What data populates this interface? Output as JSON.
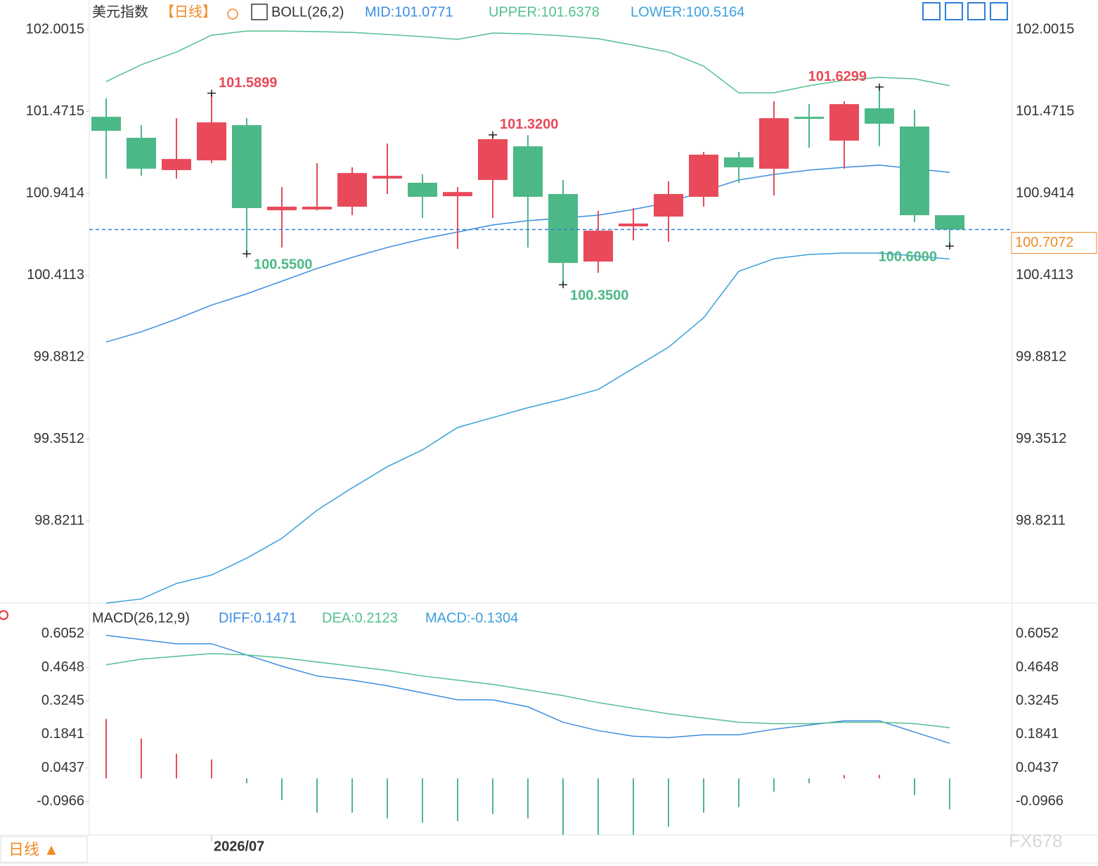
{
  "chart_data": [
    {
      "type": "candlestick",
      "title": "美元指数",
      "period": "【日线】",
      "indicator": "BOLL(26,2)",
      "open": [
        101.437,
        101.301,
        101.092,
        101.155,
        101.383,
        100.832,
        100.837,
        100.855,
        101.037,
        101.01,
        100.923,
        101.028,
        101.246,
        100.937,
        100.5,
        100.728,
        100.791,
        100.919,
        101.174,
        101.101,
        101.437,
        101.283,
        101.492,
        101.374,
        100.8
      ],
      "high": [
        101.556,
        101.383,
        101.428,
        101.5899,
        101.428,
        100.982,
        101.137,
        101.11,
        101.264,
        101.064,
        100.982,
        101.32,
        101.319,
        101.028,
        100.828,
        100.846,
        101.019,
        101.21,
        101.21,
        101.537,
        101.519,
        101.537,
        101.6299,
        101.483,
        100.8
      ],
      "low": [
        101.037,
        101.055,
        101.037,
        101.137,
        100.55,
        100.591,
        100.832,
        100.8,
        100.937,
        100.782,
        100.582,
        100.782,
        100.591,
        100.35,
        100.427,
        100.637,
        100.628,
        100.855,
        101.01,
        100.928,
        101.237,
        101.101,
        101.246,
        100.755,
        100.6
      ],
      "close": [
        101.346,
        101.101,
        101.164,
        101.401,
        100.846,
        100.855,
        100.855,
        101.073,
        101.055,
        100.919,
        100.95,
        101.292,
        100.919,
        100.491,
        100.7,
        100.746,
        100.937,
        101.192,
        101.11,
        101.428,
        101.428,
        101.519,
        101.392,
        100.8,
        100.7072
      ],
      "up_color": "#e84a5a",
      "down_color": "#4db887",
      "series": [
        {
          "name": "MID:101.0771",
          "color": "#3c8de0",
          "values": [
            99.979,
            100.045,
            100.127,
            100.218,
            100.291,
            100.373,
            100.455,
            100.527,
            100.591,
            100.646,
            100.691,
            100.737,
            100.764,
            100.782,
            100.8,
            100.837,
            100.882,
            100.955,
            101.028,
            101.064,
            101.092,
            101.11,
            101.124,
            101.101,
            101.0771
          ]
        },
        {
          "name": "UPPER:101.6378",
          "color": "#52c08f",
          "values": [
            101.665,
            101.774,
            101.856,
            101.965,
            101.992,
            101.992,
            101.988,
            101.983,
            101.97,
            101.956,
            101.938,
            101.979,
            101.974,
            101.961,
            101.942,
            101.901,
            101.856,
            101.765,
            101.592,
            101.592,
            101.638,
            101.674,
            101.692,
            101.683,
            101.6378
          ]
        },
        {
          "name": "LOWER:100.5164",
          "color": "#3aa0dc",
          "values": [
            98.289,
            98.316,
            98.416,
            98.471,
            98.58,
            98.708,
            98.89,
            99.035,
            99.172,
            99.281,
            99.426,
            99.49,
            99.554,
            99.609,
            99.672,
            99.809,
            99.945,
            100.136,
            100.437,
            100.518,
            100.546,
            100.555,
            100.555,
            100.537,
            100.5164
          ]
        }
      ],
      "annotations": [
        {
          "value": 101.5899,
          "label": "101.5899"
        },
        {
          "value": 101.32,
          "label": "101.3200"
        },
        {
          "value": 101.6299,
          "label": "101.6299"
        },
        {
          "value": 100.55,
          "label": "100.5500"
        },
        {
          "value": 100.35,
          "label": "100.3500"
        },
        {
          "value": 100.6,
          "label": "100.6000"
        }
      ],
      "last_price": 100.7072,
      "ylim": [
        98.289,
        102.193
      ],
      "yticks": [
        102.0015,
        101.4715,
        100.9414,
        100.4113,
        99.8812,
        99.3512,
        98.8211
      ]
    },
    {
      "type": "macd",
      "title": "MACD(26,12,9)",
      "categories": [
        null,
        null,
        null,
        "2026/07",
        null,
        null,
        null,
        null,
        null,
        null,
        null,
        null,
        null,
        null,
        null,
        null,
        null,
        null,
        null,
        null,
        null,
        null,
        null,
        null,
        null
      ],
      "series": [
        {
          "name": "DIFF:0.1471",
          "color": "#3c8de0",
          "values": [
            0.5993,
            0.5817,
            0.5641,
            0.5641,
            0.5171,
            0.4701,
            0.429,
            0.4114,
            0.388,
            0.3586,
            0.3292,
            0.3292,
            0.2999,
            0.2353,
            0.2,
            0.1765,
            0.1707,
            0.1824,
            0.1824,
            0.2059,
            0.2235,
            0.2411,
            0.2411,
            0.1941,
            0.1471
          ]
        },
        {
          "name": "DEA:0.2123",
          "color": "#52c08f",
          "values": [
            0.476,
            0.4995,
            0.5112,
            0.523,
            0.5171,
            0.5054,
            0.4878,
            0.4701,
            0.4525,
            0.429,
            0.4114,
            0.3938,
            0.3703,
            0.3468,
            0.3175,
            0.294,
            0.2705,
            0.2529,
            0.2353,
            0.2294,
            0.2294,
            0.2353,
            0.2353,
            0.2294,
            0.2123
          ]
        },
        {
          "name": "MACD:-0.1304",
          "color": "#3aa0dc",
          "bars": true,
          "values": [
            0.2495,
            0.1673,
            0.1028,
            0.0793,
            -0.0205,
            -0.091,
            -0.1438,
            -0.1438,
            -0.1673,
            -0.1849,
            -0.179,
            -0.1497,
            -0.1673,
            -0.237,
            -0.237,
            -0.237,
            -0.2025,
            -0.1438,
            -0.1203,
            -0.0557,
            -0.0205,
            0.0144,
            0.0144,
            -0.0701,
            -0.1304
          ]
        }
      ],
      "ylim": [
        -0.2375,
        0.7226
      ],
      "yticks": [
        0.6052,
        0.4648,
        0.3245,
        0.1841,
        0.0437,
        -0.0966
      ]
    }
  ],
  "ui": {
    "period_button": "日线 ▲",
    "watermark": "FX678"
  }
}
